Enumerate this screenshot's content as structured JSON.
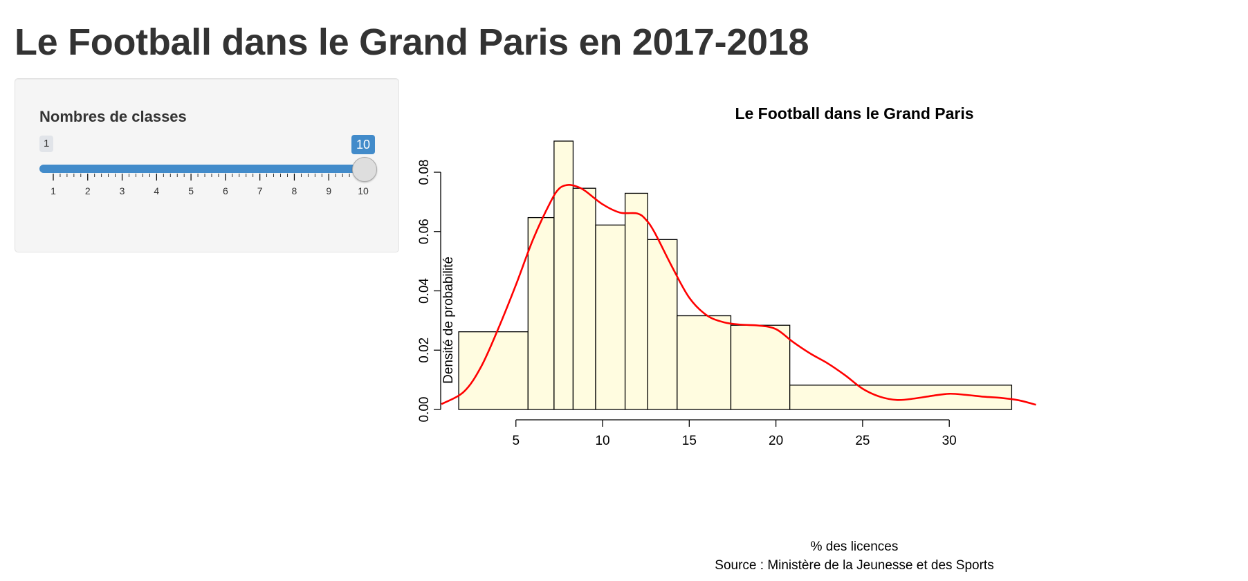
{
  "page": {
    "title": "Le Football dans le Grand Paris en 2017-2018"
  },
  "sidebar": {
    "slider": {
      "label": "Nombres de classes",
      "min": 1,
      "max": 10,
      "value": 10,
      "min_label": "1",
      "value_label": "10",
      "tick_labels": [
        "1",
        "2",
        "3",
        "4",
        "5",
        "6",
        "7",
        "8",
        "9",
        "10"
      ],
      "accent_color": "#428bca"
    }
  },
  "chart_data": {
    "type": "bar",
    "title": "Le Football dans le Grand Paris",
    "xlabel": "% des licences",
    "ylabel": "Densité de probabilité",
    "source": "Source : Ministère de la Jeunesse et des Sports",
    "xlim": [
      0.7,
      35.3
    ],
    "ylim": [
      0,
      0.0905
    ],
    "x_ticks": [
      5,
      10,
      15,
      20,
      25,
      30
    ],
    "x_tick_labels": [
      "5",
      "10",
      "15",
      "20",
      "25",
      "30"
    ],
    "y_ticks": [
      0,
      0.02,
      0.04,
      0.06,
      0.08
    ],
    "y_tick_labels": [
      "0.00",
      "0.02",
      "0.04",
      "0.06",
      "0.08"
    ],
    "grid": false,
    "bar_fill": "#fffce0",
    "bar_stroke": "#000000",
    "bins": [
      {
        "start": 1.7,
        "end": 5.7,
        "density": 0.0262
      },
      {
        "start": 5.7,
        "end": 7.2,
        "density": 0.0647
      },
      {
        "start": 7.2,
        "end": 8.3,
        "density": 0.0905
      },
      {
        "start": 8.3,
        "end": 9.6,
        "density": 0.0746
      },
      {
        "start": 9.6,
        "end": 11.3,
        "density": 0.0622
      },
      {
        "start": 11.3,
        "end": 12.6,
        "density": 0.0729
      },
      {
        "start": 12.6,
        "end": 14.3,
        "density": 0.0573
      },
      {
        "start": 14.3,
        "end": 17.4,
        "density": 0.0316
      },
      {
        "start": 17.4,
        "end": 20.8,
        "density": 0.0284
      },
      {
        "start": 20.8,
        "end": 33.6,
        "density": 0.0082
      }
    ],
    "density_curve": {
      "color": "#ff0000",
      "x": [
        0.7,
        2,
        3,
        4,
        5,
        6,
        7,
        7.5,
        8,
        8.5,
        9,
        10,
        11,
        12,
        12.5,
        13,
        14,
        15,
        16,
        17,
        18,
        19,
        20,
        21,
        22,
        23,
        24,
        25,
        26,
        27,
        28,
        29,
        30,
        31,
        32,
        33,
        34,
        35
      ],
      "y": [
        0.0018,
        0.006,
        0.0145,
        0.0275,
        0.042,
        0.0575,
        0.07,
        0.0745,
        0.0757,
        0.0752,
        0.0737,
        0.0692,
        0.0664,
        0.0661,
        0.064,
        0.0597,
        0.0482,
        0.0377,
        0.0318,
        0.0294,
        0.0286,
        0.0283,
        0.0271,
        0.0227,
        0.0188,
        0.0155,
        0.0115,
        0.007,
        0.0043,
        0.0032,
        0.0037,
        0.0046,
        0.0053,
        0.0049,
        0.0043,
        0.0039,
        0.0031,
        0.0016
      ]
    }
  }
}
